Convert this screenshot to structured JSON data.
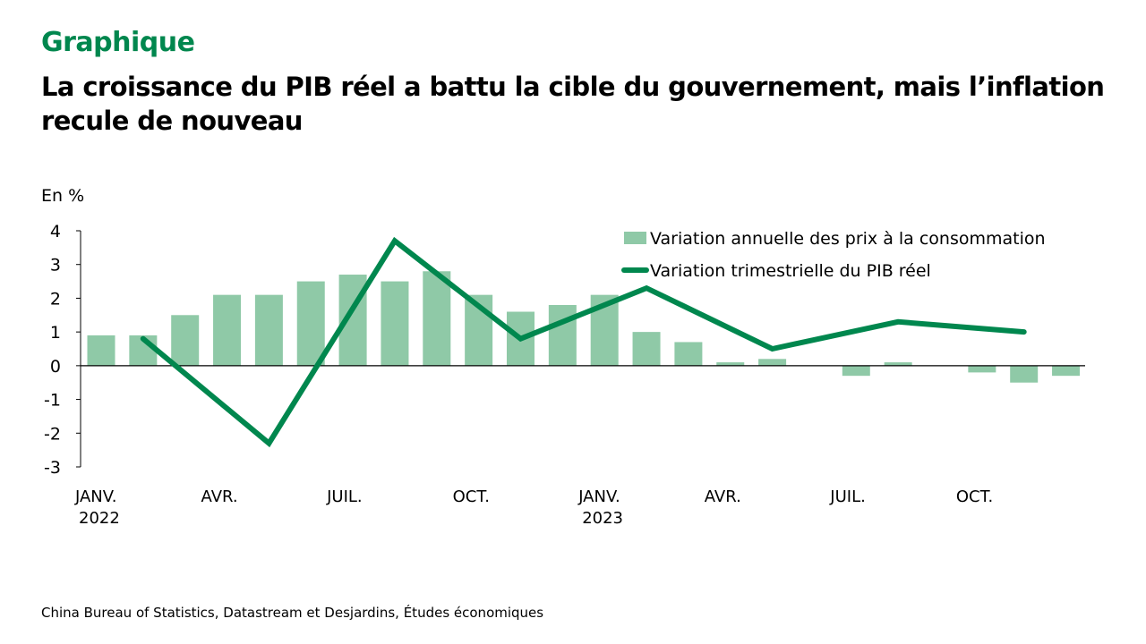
{
  "header": {
    "kicker": "Graphique",
    "title": "La croissance du PIB réel a battu la cible du gouvernement, mais l’inflation recule de nouveau"
  },
  "source": "China Bureau of Statistics, Datastream et Desjardins, Études économiques",
  "chart_data": {
    "type": "bar",
    "title": "La croissance du PIB réel a battu la cible du gouvernement, mais l’inflation recule de nouveau",
    "ylabel": "En %",
    "xlabel": "",
    "ylim": [
      -3,
      4
    ],
    "yticks": [
      4,
      3,
      2,
      1,
      0,
      -1,
      -2,
      -3
    ],
    "grid": false,
    "legend_position": "top-right",
    "x_tick_labels": [
      {
        "index": 0,
        "line1": "JANV.",
        "line2": "2022"
      },
      {
        "index": 3,
        "line1": "AVR.",
        "line2": ""
      },
      {
        "index": 6,
        "line1": "JUIL.",
        "line2": ""
      },
      {
        "index": 9,
        "line1": "OCT.",
        "line2": ""
      },
      {
        "index": 12,
        "line1": "JANV.",
        "line2": "2023"
      },
      {
        "index": 15,
        "line1": "AVR.",
        "line2": ""
      },
      {
        "index": 18,
        "line1": "JUIL.",
        "line2": ""
      },
      {
        "index": 21,
        "line1": "OCT.",
        "line2": ""
      }
    ],
    "categories": [
      "2022-01",
      "2022-02",
      "2022-03",
      "2022-04",
      "2022-05",
      "2022-06",
      "2022-07",
      "2022-08",
      "2022-09",
      "2022-10",
      "2022-11",
      "2022-12",
      "2023-01",
      "2023-02",
      "2023-03",
      "2023-04",
      "2023-05",
      "2023-06",
      "2023-07",
      "2023-08",
      "2023-09",
      "2023-10",
      "2023-11",
      "2023-12"
    ],
    "series": [
      {
        "name": "Variation annuelle des prix à la consommation",
        "kind": "bar",
        "color": "#8FC9A7",
        "values": [
          0.9,
          0.9,
          1.5,
          2.1,
          2.1,
          2.5,
          2.7,
          2.5,
          2.8,
          2.1,
          1.6,
          1.8,
          2.1,
          1.0,
          0.7,
          0.1,
          0.2,
          0.0,
          -0.3,
          0.1,
          0.0,
          -0.2,
          -0.5,
          -0.3
        ]
      },
      {
        "name": "Variation trimestrielle du PIB réel",
        "kind": "line",
        "color": "#00874E",
        "points": [
          {
            "index": 1,
            "value": 0.8
          },
          {
            "index": 4,
            "value": -2.3
          },
          {
            "index": 7,
            "value": 3.7
          },
          {
            "index": 10,
            "value": 0.8
          },
          {
            "index": 13,
            "value": 2.3
          },
          {
            "index": 16,
            "value": 0.5
          },
          {
            "index": 19,
            "value": 1.3
          },
          {
            "index": 22,
            "value": 1.0
          }
        ]
      }
    ]
  }
}
